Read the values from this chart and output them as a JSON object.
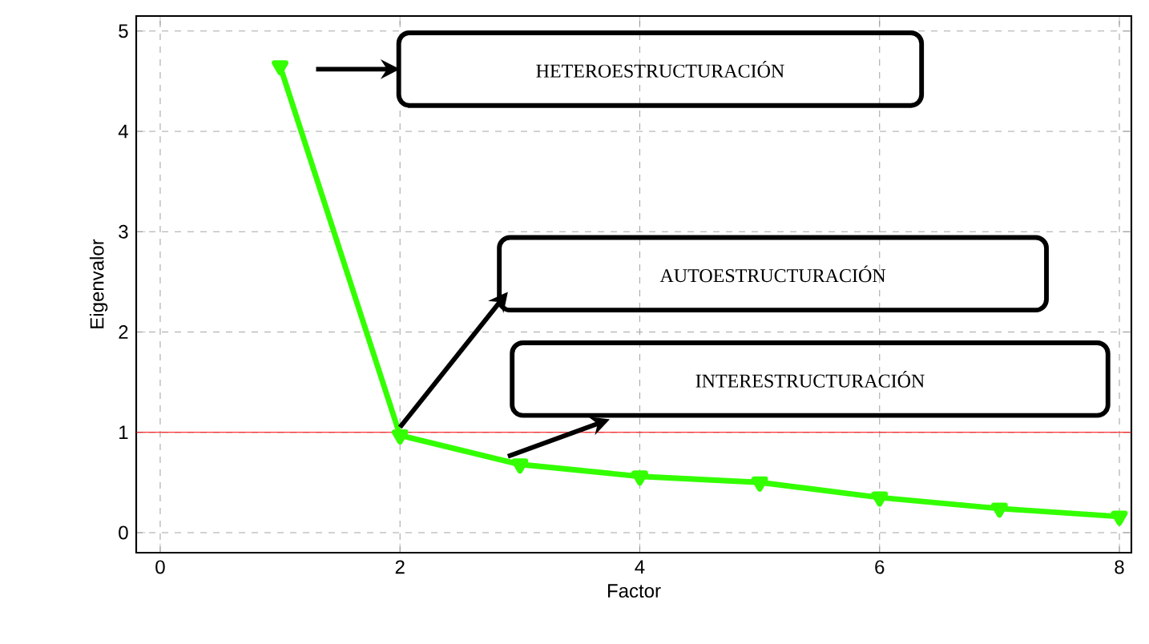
{
  "chart_data": {
    "type": "line",
    "xlabel": "Factor",
    "ylabel": "Eigenvalor",
    "x": [
      1,
      2,
      3,
      4,
      5,
      6,
      7,
      8
    ],
    "series": [
      {
        "color": "#33ff00",
        "values": [
          4.65,
          0.97,
          0.68,
          0.56,
          0.5,
          0.35,
          0.24,
          0.16
        ]
      }
    ],
    "xlim": [
      -0.2,
      8.1
    ],
    "ylim": [
      -0.2,
      5.15
    ],
    "xticks": [
      0,
      2,
      4,
      6,
      8
    ],
    "yticks": [
      0,
      1,
      2,
      3,
      4,
      5
    ],
    "grid": true,
    "marker": "triangle",
    "line_style": "solid",
    "ref_lines": [
      {
        "axis": "y",
        "value": 1,
        "color": "#ff0000"
      }
    ],
    "annotations": [
      "HETEROESTRUCTURACIÓN",
      "AUTOESTRUCTURACIÓN",
      "INTERESTRUCTURACIÓN"
    ]
  }
}
